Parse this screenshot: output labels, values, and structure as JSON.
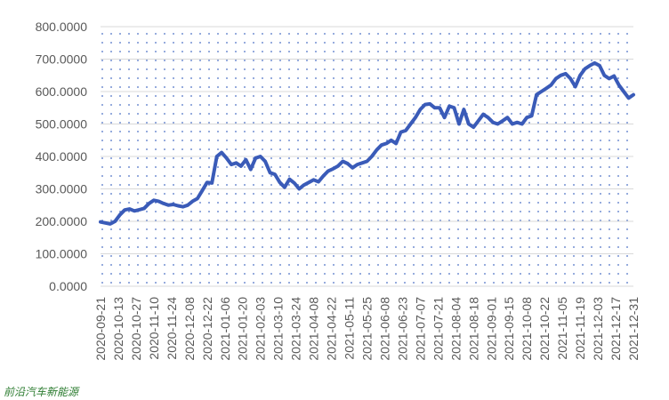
{
  "chart_data": {
    "type": "line",
    "title": "",
    "xlabel": "",
    "ylabel": "",
    "ylim": [
      0,
      800
    ],
    "y_ticks": [
      "0.0000",
      "100.0000",
      "200.0000",
      "300.0000",
      "400.0000",
      "500.0000",
      "600.0000",
      "700.0000",
      "800.0000"
    ],
    "x_ticks": [
      "2020-09-21",
      "2020-10-13",
      "2020-10-27",
      "2020-11-10",
      "2020-11-24",
      "2020-12-08",
      "2020-12-22",
      "2021-01-06",
      "2021-01-20",
      "2021-02-03",
      "2021-03-10",
      "2021-03-24",
      "2021-04-08",
      "2021-04-22",
      "2021-05-11",
      "2021-05-25",
      "2021-06-08",
      "2021-06-23",
      "2021-07-07",
      "2021-07-21",
      "2021-08-04",
      "2021-08-18",
      "2021-09-01",
      "2021-09-15",
      "2021-10-08",
      "2021-10-22",
      "2021-11-05",
      "2021-11-19",
      "2021-12-03",
      "2021-12-17",
      "2021-12-31"
    ],
    "grid": "dotted",
    "legend": "none",
    "series_color": "#3a5bb8",
    "values": [
      198,
      195,
      192,
      200,
      220,
      235,
      238,
      232,
      236,
      240,
      255,
      265,
      262,
      255,
      250,
      252,
      248,
      245,
      250,
      262,
      270,
      295,
      320,
      318,
      400,
      412,
      395,
      375,
      380,
      370,
      390,
      360,
      395,
      400,
      385,
      350,
      345,
      320,
      305,
      330,
      318,
      300,
      312,
      320,
      328,
      322,
      340,
      355,
      362,
      370,
      385,
      378,
      365,
      375,
      380,
      385,
      400,
      420,
      435,
      440,
      450,
      440,
      475,
      480,
      500,
      520,
      545,
      560,
      562,
      550,
      550,
      520,
      555,
      550,
      500,
      545,
      500,
      490,
      510,
      530,
      520,
      505,
      500,
      510,
      520,
      500,
      505,
      500,
      520,
      525,
      590,
      600,
      610,
      620,
      640,
      650,
      655,
      640,
      615,
      650,
      670,
      680,
      688,
      680,
      650,
      640,
      648,
      620,
      600,
      580,
      590
    ]
  },
  "watermark": "前沿汽车新能源"
}
